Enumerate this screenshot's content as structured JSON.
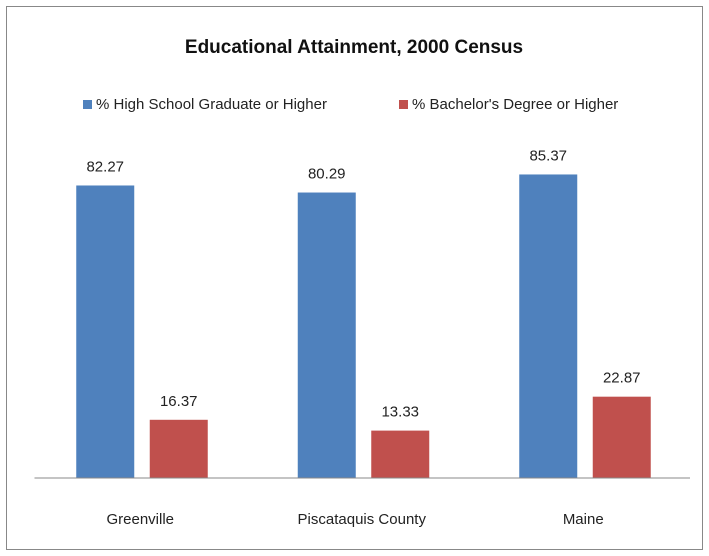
{
  "chart_data": {
    "type": "bar",
    "title": "Educational Attainment, 2000 Census",
    "categories": [
      "Greenville",
      "Piscataquis County",
      "Maine"
    ],
    "series": [
      {
        "name": "% High School Graduate or Higher",
        "color": "#4f81bd",
        "values": [
          82.27,
          80.29,
          85.37
        ]
      },
      {
        "name": "% Bachelor's Degree or Higher",
        "color": "#c0504d",
        "values": [
          16.37,
          13.33,
          22.87
        ]
      }
    ],
    "ylim": [
      0,
      90
    ],
    "legend": "top"
  }
}
